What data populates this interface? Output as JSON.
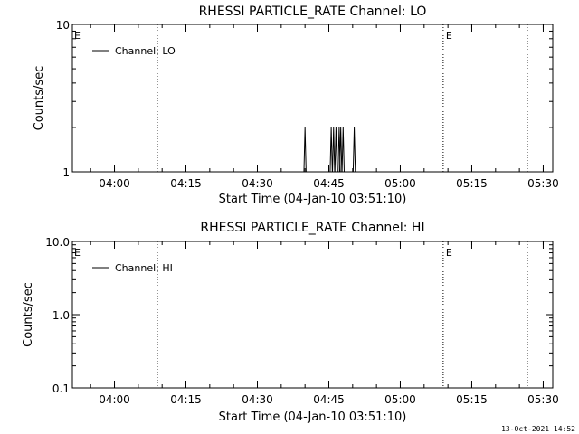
{
  "footer": {
    "timestamp": "13-Oct-2021 14:52"
  },
  "chart_data": [
    {
      "type": "line",
      "title": "RHESSI PARTICLE_RATE Channel: LO",
      "xlabel": "Start Time (04-Jan-10 03:51:10)",
      "ylabel": "Counts/sec",
      "x_unit": "time (HH:MM)",
      "xlim": [
        "03:51:10",
        "05:32:00"
      ],
      "x_ticks": [
        "04:00",
        "04:15",
        "04:30",
        "04:45",
        "05:00",
        "05:15",
        "05:30"
      ],
      "y_scale": "log",
      "ylim": [
        1,
        10
      ],
      "y_ticks": [
        "1",
        "10"
      ],
      "legend": {
        "placement": "top-left",
        "entries": [
          "Channel: LO"
        ]
      },
      "event_markers": [
        {
          "time": "04:09:00",
          "label": "",
          "style": "dotted"
        },
        {
          "time": "05:09:00",
          "label": "E",
          "style": "dotted"
        },
        {
          "time": "05:26:40",
          "label": "",
          "style": "dotted"
        }
      ],
      "left_edge_label": "E",
      "series": [
        {
          "name": "Channel: LO",
          "spikes": [
            {
              "time": "04:40:00",
              "value": 2
            },
            {
              "time": "04:45:30",
              "value": 2
            },
            {
              "time": "04:46:00",
              "value": 2
            },
            {
              "time": "04:46:30",
              "value": 2
            },
            {
              "time": "04:47:10",
              "value": 2
            },
            {
              "time": "04:47:30",
              "value": 2
            },
            {
              "time": "04:48:00",
              "value": 2
            },
            {
              "time": "04:50:20",
              "value": 2
            }
          ]
        }
      ]
    },
    {
      "type": "line",
      "title": "RHESSI PARTICLE_RATE Channel: HI",
      "xlabel": "Start Time (04-Jan-10 03:51:10)",
      "ylabel": "Counts/sec",
      "x_unit": "time (HH:MM)",
      "xlim": [
        "03:51:10",
        "05:32:00"
      ],
      "x_ticks": [
        "04:00",
        "04:15",
        "04:30",
        "04:45",
        "05:00",
        "05:15",
        "05:30"
      ],
      "y_scale": "log",
      "ylim": [
        0.1,
        10
      ],
      "y_ticks": [
        "0.1",
        "1.0",
        "10.0"
      ],
      "legend": {
        "placement": "top-left",
        "entries": [
          "Channel: HI"
        ]
      },
      "event_markers": [
        {
          "time": "04:09:00",
          "label": "",
          "style": "dotted"
        },
        {
          "time": "05:09:00",
          "label": "E",
          "style": "dotted"
        },
        {
          "time": "05:26:40",
          "label": "",
          "style": "dotted"
        }
      ],
      "left_edge_label": "E",
      "series": [
        {
          "name": "Channel: HI",
          "spikes": []
        }
      ]
    }
  ]
}
